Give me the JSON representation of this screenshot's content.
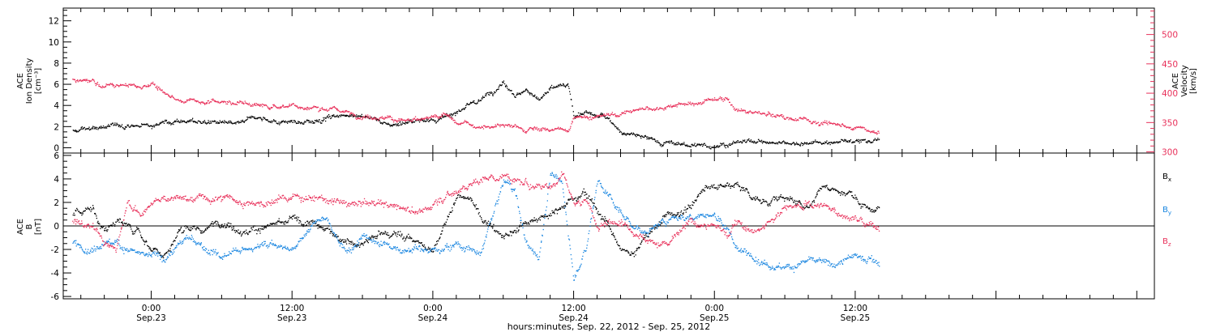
{
  "colors": {
    "black": "#000000",
    "pink": "#e8305a",
    "blue": "#1a86e0"
  },
  "chart_data": [
    {
      "type": "scatter",
      "panel": "top",
      "ylabel_lines": [
        "ACE",
        "Ion Density",
        "[cm⁻³]"
      ],
      "ylim": [
        -0.5,
        13.2
      ],
      "yticks": [
        0,
        2,
        4,
        6,
        8,
        10,
        12
      ],
      "y2label_lines": [
        "ACE",
        "Velocity",
        "[km/s]"
      ],
      "y2lim": [
        298,
        545
      ],
      "y2ticks": [
        300,
        350,
        400,
        450,
        500
      ],
      "grid": false,
      "series": [
        {
          "axis": "left",
          "color_key": "black",
          "noise": 0.35,
          "x": [
            -6.7,
            -5.5,
            -4.5,
            -3,
            -1,
            1,
            3,
            5,
            7,
            9,
            11,
            13,
            15,
            17,
            19,
            20,
            22,
            23.5,
            24,
            25,
            26,
            28,
            29,
            30,
            31,
            32,
            33,
            34,
            35,
            35.5,
            36,
            37,
            38,
            39,
            40,
            41,
            42,
            43,
            44,
            45,
            46,
            47,
            48,
            49,
            50,
            51,
            52,
            53,
            54,
            56,
            58,
            60,
            62
          ],
          "y": [
            1.6,
            1.8,
            2.0,
            2.2,
            2.1,
            2.4,
            2.6,
            2.5,
            2.2,
            2.9,
            2.5,
            2.4,
            3.0,
            3.2,
            2.8,
            2.2,
            2.5,
            2.8,
            2.6,
            3.0,
            3.5,
            4.5,
            5.5,
            6.2,
            5.0,
            5.5,
            4.5,
            5.5,
            6.0,
            5.8,
            3.0,
            3.3,
            3.0,
            2.9,
            1.5,
            1.2,
            1.0,
            0.7,
            0.6,
            0.3,
            0.3,
            0.2,
            0.2,
            0.5,
            0.6,
            0.6,
            0.6,
            0.5,
            0.6,
            0.5,
            0.6,
            0.7,
            0.7
          ]
        },
        {
          "axis": "right",
          "color_key": "pink",
          "noise": 6,
          "x": [
            -6.7,
            -5,
            -4.5,
            -3,
            -1,
            0,
            1,
            2,
            4,
            6,
            8,
            10,
            12,
            14,
            16,
            18,
            20,
            22,
            24,
            25,
            26,
            28,
            30,
            32,
            34,
            35,
            35.5,
            36,
            38,
            40,
            42,
            44,
            46,
            48,
            49,
            50,
            52,
            54,
            56,
            58,
            60,
            62
          ],
          "y": [
            425,
            420,
            410,
            415,
            410,
            420,
            400,
            390,
            388,
            385,
            383,
            378,
            380,
            375,
            372,
            362,
            358,
            353,
            358,
            363,
            348,
            345,
            344,
            340,
            338,
            340,
            334,
            362,
            360,
            365,
            375,
            380,
            384,
            392,
            393,
            370,
            365,
            358,
            354,
            348,
            342,
            335
          ]
        }
      ]
    },
    {
      "type": "scatter",
      "panel": "bottom",
      "ylabel_lines": [
        "ACE",
        "B",
        "[nT]"
      ],
      "ylim": [
        -6.2,
        6.2
      ],
      "yticks": [
        -6,
        -4,
        -2,
        0,
        2,
        4,
        6
      ],
      "xlim": [
        -7.5,
        85.5
      ],
      "xticks_hours": [
        0,
        12,
        24,
        36,
        48,
        60
      ],
      "xtick_labels": [
        [
          "0:00",
          "Sep.23"
        ],
        [
          "12:00",
          "Sep.23"
        ],
        [
          "0:00",
          "Sep.24"
        ],
        [
          "12:00",
          "Sep.24"
        ],
        [
          "0:00",
          "Sep.25"
        ],
        [
          "12:00",
          "Sep.25"
        ]
      ],
      "xlabel": "hours:minutes, Sep. 22, 2012 - Sep. 25, 2012",
      "legend": [
        "B",
        "B",
        "B"
      ],
      "legend_subscripts": [
        "x",
        "y",
        "z"
      ],
      "legend_placement": "right",
      "grid": false,
      "series": [
        {
          "name": "Bx",
          "color_key": "black",
          "noise": 0.5,
          "x": [
            -6.7,
            -5,
            -4,
            -3,
            -2,
            -1,
            0,
            1,
            2,
            3,
            4,
            6,
            8,
            10,
            12,
            14,
            16,
            18,
            20,
            22,
            24,
            26,
            27,
            28,
            30,
            32,
            34,
            36,
            37,
            38,
            40,
            41,
            42,
            44,
            46,
            47,
            48,
            49,
            50,
            51,
            52,
            54,
            56,
            57,
            58,
            60,
            61,
            62
          ],
          "y": [
            1.0,
            1.5,
            -0.5,
            0.5,
            0.0,
            -0.5,
            -2.0,
            -2.5,
            -1.0,
            0.0,
            -0.5,
            0.5,
            -0.5,
            0.0,
            0.5,
            0.0,
            -1.0,
            -1.5,
            -0.5,
            -1.0,
            -2.0,
            2.5,
            2.5,
            1.0,
            -1.0,
            0.5,
            1.0,
            2.5,
            3.0,
            1.5,
            -2.0,
            -2.5,
            -1.0,
            1.0,
            1.5,
            3.2,
            3.5,
            3.5,
            3.8,
            2.5,
            2.0,
            2.5,
            1.5,
            3.5,
            3.3,
            2.5,
            1.5,
            1.5
          ]
        },
        {
          "name": "By",
          "color_key": "blue",
          "noise": 0.5,
          "x": [
            -6.7,
            -5,
            -4,
            -3,
            -2,
            -1,
            0,
            1,
            2,
            3,
            4,
            6,
            8,
            10,
            12,
            14,
            15,
            16,
            17,
            18,
            20,
            22,
            24,
            26,
            28,
            30,
            31,
            32,
            33,
            34,
            35,
            36,
            37,
            38,
            40,
            42,
            44,
            46,
            48,
            49,
            50,
            52,
            54,
            56,
            58,
            60,
            62
          ],
          "y": [
            -1.5,
            -2.0,
            -1.0,
            -1.5,
            -2.0,
            -2.5,
            -2.5,
            -2.8,
            -2.0,
            -1.0,
            -1.5,
            -2.5,
            -2.0,
            -1.5,
            -2.0,
            0.5,
            0.5,
            -1.5,
            -2.0,
            -1.0,
            -1.5,
            -2.0,
            -2.0,
            -1.5,
            -2.5,
            4.0,
            3.0,
            -1.5,
            -2.5,
            4.5,
            3.5,
            -4.5,
            -2.0,
            4.0,
            1.0,
            -0.5,
            0.5,
            1.0,
            1.0,
            0.0,
            -2.0,
            -3.0,
            -3.5,
            -3.0,
            -3.2,
            -2.5,
            -3.0
          ]
        },
        {
          "name": "Bz",
          "color_key": "pink",
          "noise": 0.5,
          "x": [
            -6.7,
            -5,
            -4,
            -3,
            -2,
            -1,
            0,
            1,
            2,
            3,
            4,
            6,
            8,
            10,
            12,
            14,
            16,
            18,
            20,
            22,
            23,
            24,
            26,
            28,
            30,
            32,
            34,
            35,
            36,
            37,
            38,
            40,
            42,
            44,
            46,
            48,
            49,
            50,
            51,
            52,
            54,
            56,
            58,
            60,
            62
          ],
          "y": [
            0.5,
            0.0,
            -1.5,
            -2.0,
            2.0,
            1.0,
            2.0,
            2.5,
            2.5,
            2.0,
            2.5,
            2.5,
            2.0,
            2.0,
            2.5,
            2.5,
            2.0,
            2.0,
            2.0,
            1.5,
            1.0,
            2.0,
            3.0,
            4.0,
            4.5,
            3.5,
            3.5,
            4.5,
            2.0,
            2.5,
            0.0,
            0.5,
            -1.0,
            -1.5,
            0.5,
            0.0,
            -0.5,
            0.5,
            -0.5,
            0.0,
            1.5,
            2.0,
            1.5,
            0.5,
            0.0
          ]
        }
      ]
    }
  ]
}
